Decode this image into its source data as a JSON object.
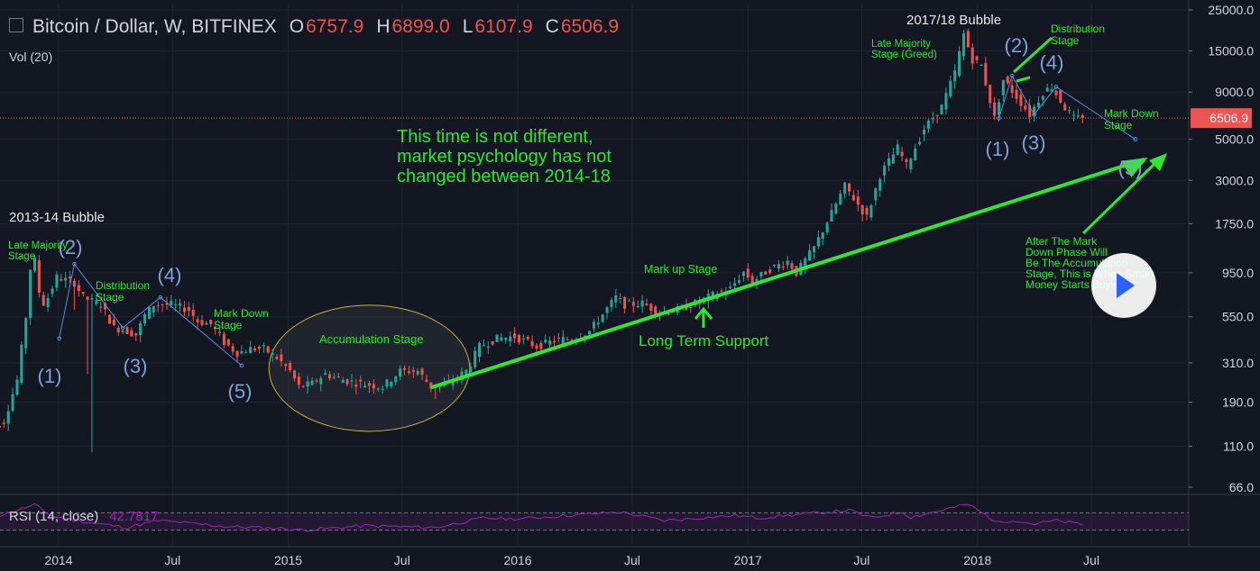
{
  "header": {
    "symbol": "Bitcoin / Dollar, W, BITFINEX",
    "open_label": "O",
    "open": "6757.9",
    "high_label": "H",
    "high": "6899.0",
    "low_label": "L",
    "low": "6107.9",
    "close_label": "C",
    "close": "6506.9",
    "volume_label": "Vol (20)"
  },
  "rsi": {
    "label": "RSI (14, close)",
    "value": "42.7817"
  },
  "chart_data": {
    "type": "candlestick",
    "y_scale": "log",
    "ylim": [
      66,
      25000
    ],
    "y_ticks": [
      66,
      110,
      190,
      310,
      550,
      950,
      1750,
      3000,
      5000,
      9000,
      15000,
      25000
    ],
    "y_tick_labels": [
      "66.0",
      "110.0",
      "190.0",
      "310.0",
      "550.0",
      "950.0",
      "1750.0",
      "3000.0",
      "5000.0",
      "9000.0",
      "15000.0",
      "25000.0"
    ],
    "x_tick_labels": [
      {
        "label": "2014",
        "date": "2014-01-01"
      },
      {
        "label": "Jul",
        "date": "2014-07-01"
      },
      {
        "label": "2015",
        "date": "2015-01-01"
      },
      {
        "label": "Jul",
        "date": "2015-07-01"
      },
      {
        "label": "2016",
        "date": "2016-01-01"
      },
      {
        "label": "Jul",
        "date": "2016-07-01"
      },
      {
        "label": "2017",
        "date": "2017-01-01"
      },
      {
        "label": "Jul",
        "date": "2017-07-01"
      },
      {
        "label": "2018",
        "date": "2018-01-01"
      },
      {
        "label": "Jul",
        "date": "2018-07-01"
      }
    ],
    "last_price": "6506.9",
    "last_price_value": 6506.9,
    "price_path": [
      [
        "2013-09-08",
        125
      ],
      [
        "2013-10-13",
        150
      ],
      [
        "2013-11-03",
        250
      ],
      [
        "2013-11-17",
        550
      ],
      [
        "2013-11-24",
        1000
      ],
      [
        "2013-12-01",
        1100
      ],
      [
        "2013-12-08",
        750
      ],
      [
        "2013-12-15",
        650
      ],
      [
        "2013-12-22",
        700
      ],
      [
        "2014-01-05",
        900
      ],
      [
        "2014-02-02",
        840
      ],
      [
        "2014-02-16",
        700
      ],
      [
        "2014-03-16",
        640
      ],
      [
        "2014-04-06",
        480
      ],
      [
        "2014-04-20",
        470
      ],
      [
        "2014-05-11",
        440
      ],
      [
        "2014-05-25",
        560
      ],
      [
        "2014-06-08",
        640
      ],
      [
        "2014-07-06",
        640
      ],
      [
        "2014-08-03",
        600
      ],
      [
        "2014-08-17",
        520
      ],
      [
        "2014-09-07",
        500
      ],
      [
        "2014-09-28",
        400
      ],
      [
        "2014-10-19",
        350
      ],
      [
        "2014-11-09",
        370
      ],
      [
        "2014-11-30",
        370
      ],
      [
        "2014-12-21",
        330
      ],
      [
        "2015-01-11",
        280
      ],
      [
        "2015-01-25",
        230
      ],
      [
        "2015-02-15",
        240
      ],
      [
        "2015-03-08",
        270
      ],
      [
        "2015-04-05",
        250
      ],
      [
        "2015-05-03",
        240
      ],
      [
        "2015-06-07",
        230
      ],
      [
        "2015-07-05",
        280
      ],
      [
        "2015-08-02",
        280
      ],
      [
        "2015-08-23",
        230
      ],
      [
        "2015-09-20",
        240
      ],
      [
        "2015-10-18",
        280
      ],
      [
        "2015-11-08",
        380
      ],
      [
        "2015-12-06",
        420
      ],
      [
        "2016-01-03",
        430
      ],
      [
        "2016-02-07",
        380
      ],
      [
        "2016-03-06",
        410
      ],
      [
        "2016-04-03",
        420
      ],
      [
        "2016-05-01",
        460
      ],
      [
        "2016-06-12",
        700
      ],
      [
        "2016-06-26",
        640
      ],
      [
        "2016-07-24",
        650
      ],
      [
        "2016-08-21",
        580
      ],
      [
        "2016-09-18",
        600
      ],
      [
        "2016-10-16",
        650
      ],
      [
        "2016-11-13",
        720
      ],
      [
        "2016-12-11",
        780
      ],
      [
        "2017-01-01",
        960
      ],
      [
        "2017-01-15",
        850
      ],
      [
        "2017-02-12",
        1000
      ],
      [
        "2017-03-12",
        1100
      ],
      [
        "2017-03-26",
        950
      ],
      [
        "2017-04-23",
        1300
      ],
      [
        "2017-05-21",
        2000
      ],
      [
        "2017-06-11",
        2800
      ],
      [
        "2017-07-16",
        1900
      ],
      [
        "2017-08-06",
        3200
      ],
      [
        "2017-09-03",
        4500
      ],
      [
        "2017-09-17",
        3600
      ],
      [
        "2017-10-15",
        5700
      ],
      [
        "2017-11-12",
        7500
      ],
      [
        "2017-12-03",
        11500
      ],
      [
        "2017-12-17",
        18500
      ],
      [
        "2017-12-31",
        13500
      ],
      [
        "2018-01-14",
        12500
      ],
      [
        "2018-02-04",
        6500
      ],
      [
        "2018-02-18",
        10500
      ],
      [
        "2018-03-11",
        8500
      ],
      [
        "2018-04-01",
        6800
      ],
      [
        "2018-04-22",
        9000
      ],
      [
        "2018-05-06",
        9600
      ],
      [
        "2018-05-27",
        7400
      ],
      [
        "2018-06-10",
        6500
      ],
      [
        "2018-06-17",
        6507
      ]
    ],
    "spikes": [
      {
        "date": "2014-02-23",
        "low": 102
      },
      {
        "date": "2014-02-16",
        "low": 270
      },
      {
        "date": "2015-08-23",
        "low": 198
      },
      {
        "date": "2014-01-26",
        "low": 600
      }
    ],
    "trendline": {
      "from": [
        "2015-08-16",
        228
      ],
      "to": [
        "2018-09-23",
        3900
      ],
      "label": "Long Term Support"
    },
    "projection": {
      "from": [
        "2018-05-06",
        9600
      ],
      "to": [
        "2018-09-09",
        5000
      ]
    },
    "waves_2014": [
      {
        "label": "(1)",
        "date": "2014-01-02",
        "price": 420
      },
      {
        "label": "(2)",
        "date": "2014-01-26",
        "price": 1060
      },
      {
        "label": "(3)",
        "date": "2014-04-13",
        "price": 480
      },
      {
        "label": "(4)",
        "date": "2014-06-12",
        "price": 700
      },
      {
        "label": "(5)",
        "date": "2014-10-19",
        "price": 300
      }
    ],
    "waves_2018": [
      {
        "label": "(1)",
        "date": "2018-02-04",
        "price": 6500
      },
      {
        "label": "(2)",
        "date": "2018-02-25",
        "price": 11000
      },
      {
        "label": "(3)",
        "date": "2018-04-01",
        "price": 6800
      },
      {
        "label": "(4)",
        "date": "2018-05-06",
        "price": 9600
      },
      {
        "label": "(5)",
        "date": "2018-09-09",
        "price": 5000
      }
    ],
    "annotations": {
      "bubble_2013": "2013-14 Bubble",
      "bubble_2017": "2017/18 Bubble",
      "late_majority_2013": "Late Majority Stage",
      "late_majority_2017": "Late Majority Stage (Greed)",
      "distribution_2014": "Distribution Stage",
      "distribution_2018": "Distribution Stage",
      "markdown_2014": "Mark Down Stage",
      "markdown_2018": "Mark Down Stage",
      "accumulation": "Accumulation Stage",
      "markup": "Mark up Stage",
      "headline": "This time is not different, market psychology has not changed between 2014-18",
      "after_markdown": "After The Mark Down Phase Will Be The Accumulation Stage, This is When Smart Money Starts Buying"
    }
  },
  "rsi_data": {
    "levels": [
      30,
      70
    ],
    "points": [
      [
        "2013-09-08",
        55
      ],
      [
        "2013-11-24",
        88
      ],
      [
        "2013-12-22",
        62
      ],
      [
        "2014-02-16",
        48
      ],
      [
        "2014-04-20",
        36
      ],
      [
        "2014-06-08",
        52
      ],
      [
        "2014-09-28",
        38
      ],
      [
        "2014-12-21",
        34
      ],
      [
        "2015-01-25",
        30
      ],
      [
        "2015-05-03",
        40
      ],
      [
        "2015-08-23",
        36
      ],
      [
        "2015-11-08",
        58
      ],
      [
        "2016-01-03",
        56
      ],
      [
        "2016-06-12",
        72
      ],
      [
        "2016-08-21",
        52
      ],
      [
        "2016-12-11",
        64
      ],
      [
        "2017-01-15",
        58
      ],
      [
        "2017-06-11",
        76
      ],
      [
        "2017-07-16",
        58
      ],
      [
        "2017-09-03",
        72
      ],
      [
        "2017-09-17",
        60
      ],
      [
        "2017-12-17",
        90
      ],
      [
        "2018-02-04",
        46
      ],
      [
        "2018-02-25",
        54
      ],
      [
        "2018-04-01",
        44
      ],
      [
        "2018-05-06",
        52
      ],
      [
        "2018-06-17",
        42.8
      ]
    ]
  }
}
